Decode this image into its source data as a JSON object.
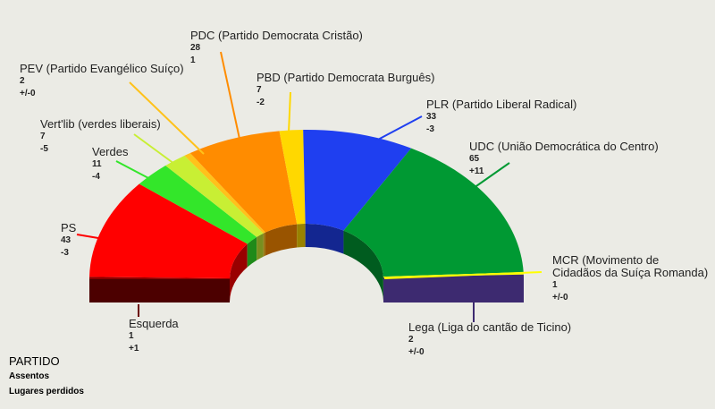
{
  "chart_data": {
    "type": "parliament",
    "categories": [
      "Esquerda",
      "PS",
      "Verdes",
      "Vert'lib (verdes liberais)",
      "PEV (Partido Evangélico Suíço)",
      "PDC (Partido Democrata Cristão)",
      "PBD (Partido Democrata Burguês)",
      "PLR (Partido Liberal Radical)",
      "UDC (União Democrática do Centro)",
      "MCR (Movimento de Cidadãos da Suíça Romanda)",
      "Lega (Liga do cantão de Ticino)"
    ],
    "values": [
      1,
      43,
      11,
      7,
      2,
      28,
      7,
      33,
      65,
      1,
      2
    ],
    "changes": [
      "+1",
      "-3",
      "-4",
      "-5",
      "+/-0",
      "1",
      "-2",
      "-3",
      "+11",
      "+/-0",
      "+/-0"
    ],
    "colors": [
      "#8b0000",
      "#ff0000",
      "#33e62a",
      "#c8ef34",
      "#ffc21a",
      "#ff8c00",
      "#ffd800",
      "#1f3ff0",
      "#009933",
      "#ffff00",
      "#3d2a70"
    ],
    "key": {
      "title": "PARTIDO",
      "seats": "Assentos",
      "change": "Lugares perdidos"
    }
  }
}
